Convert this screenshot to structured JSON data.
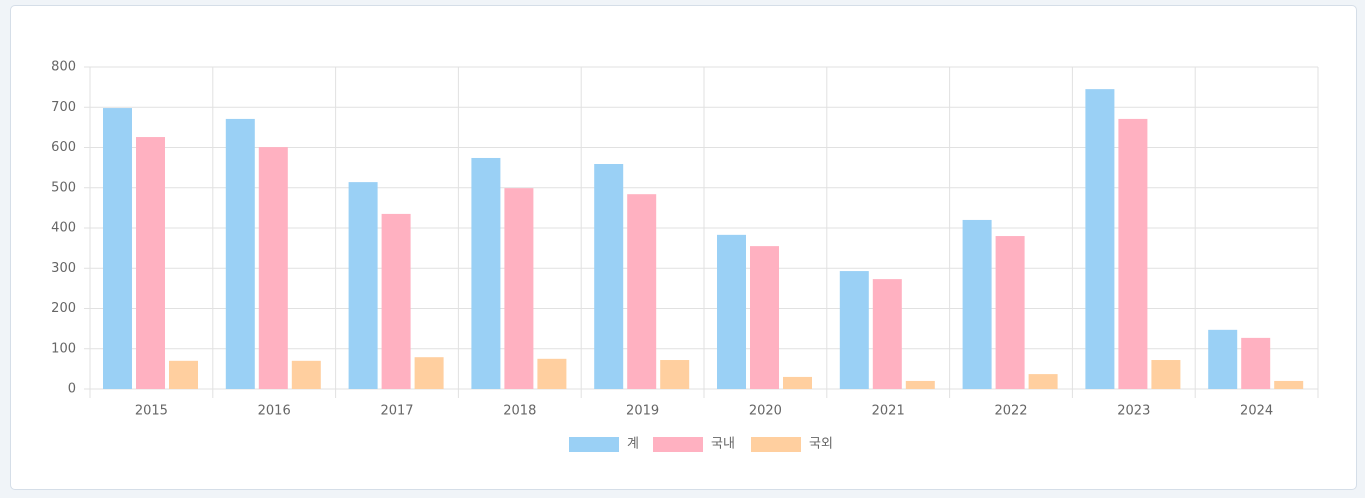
{
  "chart_data": {
    "type": "bar",
    "categories": [
      "2015",
      "2016",
      "2017",
      "2018",
      "2019",
      "2020",
      "2021",
      "2022",
      "2023",
      "2024"
    ],
    "series": [
      {
        "name": "계",
        "color": "#9ad0f5",
        "values": [
          698,
          671,
          514,
          574,
          559,
          383,
          293,
          420,
          745,
          147
        ]
      },
      {
        "name": "국내",
        "color": "#ffb1c1",
        "values": [
          626,
          601,
          435,
          499,
          484,
          355,
          273,
          380,
          671,
          127
        ]
      },
      {
        "name": "국외",
        "color": "#ffcf9f",
        "values": [
          70,
          70,
          79,
          75,
          72,
          30,
          20,
          37,
          72,
          20
        ]
      }
    ],
    "ylim": [
      0,
      800
    ],
    "yticks": [
      0,
      100,
      200,
      300,
      400,
      500,
      600,
      700,
      800
    ],
    "grid": true,
    "legend": "bottom"
  }
}
